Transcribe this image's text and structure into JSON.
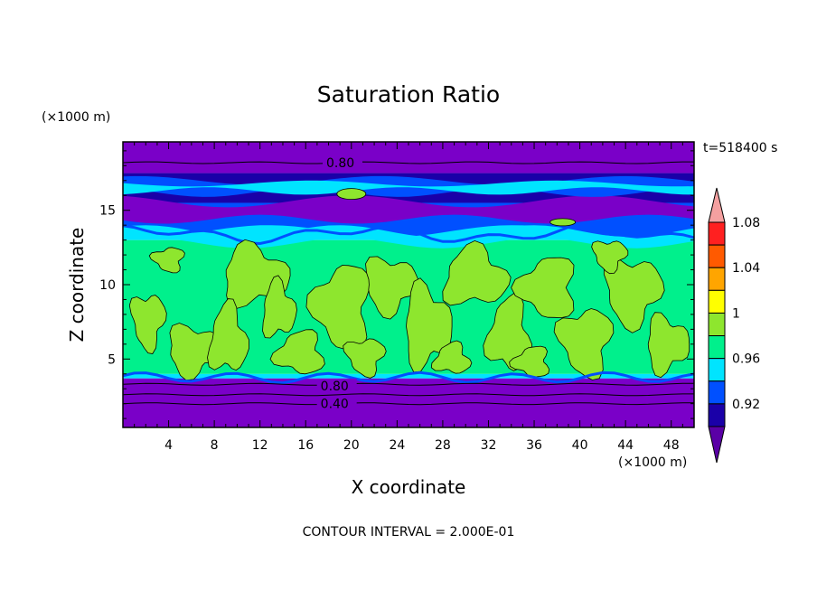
{
  "chart_data": {
    "type": "heatmap",
    "title": "Saturation Ratio",
    "xlabel": "X coordinate",
    "ylabel": "Z coordinate",
    "x_unit": "(×1000 m)",
    "y_unit": "(×1000 m)",
    "time_label": "t=518400 s",
    "footer": "CONTOUR INTERVAL = 2.000E-01",
    "xlim": [
      0,
      50
    ],
    "ylim": [
      0.4,
      19.6
    ],
    "x_ticks": [
      "4",
      "8",
      "12",
      "16",
      "20",
      "24",
      "28",
      "32",
      "36",
      "40",
      "44",
      "48"
    ],
    "x_tick_values": [
      4,
      8,
      12,
      16,
      20,
      24,
      28,
      32,
      36,
      40,
      44,
      48
    ],
    "y_ticks": [
      "5",
      "10",
      "15"
    ],
    "y_tick_values": [
      5,
      10,
      15
    ],
    "contour_labels": [
      {
        "text": "0.80",
        "x": 17.8,
        "z": 18.2
      },
      {
        "text": "0.80",
        "x": 17.3,
        "z": 3.2
      },
      {
        "text": "0.40",
        "x": 17.3,
        "z": 2.0
      }
    ],
    "colorbar": {
      "labels": [
        "1.08",
        "1.04",
        "1",
        "0.96",
        "0.92"
      ],
      "label_values": [
        1.08,
        1.04,
        1.0,
        0.96,
        0.92
      ],
      "levels": [
        0.92,
        0.94,
        0.96,
        0.98,
        1.0,
        1.02,
        1.04,
        1.06,
        1.08,
        1.1
      ],
      "colors": [
        "#5a00a6",
        "#1a00a8",
        "#0050ff",
        "#00e4ff",
        "#00f08c",
        "#8ee62e",
        "#ffff00",
        "#ffa500",
        "#ff5a00",
        "#ff2020",
        "#f4a0a0"
      ],
      "under_color": "#5a00a6",
      "over_color": "#f4a0a0"
    },
    "field_layers": [
      {
        "z_range": [
          0.4,
          3.7
        ],
        "value": 0.7,
        "color": "#7a00c8"
      },
      {
        "z_range": [
          3.7,
          4.0
        ],
        "value": 0.97,
        "color": "#00e4ff"
      },
      {
        "z_range": [
          4.0,
          13.0
        ],
        "value": 0.99,
        "color": "#00f08c"
      },
      {
        "z_range": [
          13.0,
          14.0
        ],
        "value": 0.97,
        "color": "#00e4ff"
      },
      {
        "z_range": [
          14.0,
          15.5
        ],
        "value": 0.95,
        "color": "#0050ff"
      },
      {
        "z_range": [
          15.5,
          17.5
        ],
        "value": 0.93,
        "color": "#1a00a8"
      },
      {
        "z_range": [
          17.5,
          19.6
        ],
        "value": 0.8,
        "color": "#7a00c8"
      }
    ]
  }
}
